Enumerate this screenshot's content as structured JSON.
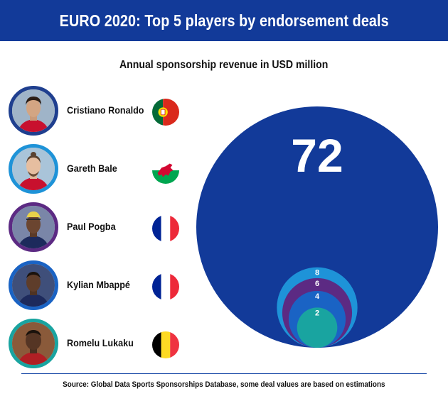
{
  "header": {
    "title": "EURO 2020: Top 5 players by endorsement deals"
  },
  "chart_data": {
    "type": "bubble",
    "title": "EURO 2020: Top 5 players by endorsement deals",
    "subtitle": "Annual sponsorship revenue in USD million",
    "unit": "USD million",
    "categories": [
      "Cristiano Ronaldo",
      "Gareth Bale",
      "Paul Pogba",
      "Kylian Mbappé",
      "Romelu Lukaku"
    ],
    "values": [
      72,
      8,
      6,
      4,
      2
    ],
    "labels": [
      "72",
      "8",
      "6",
      "4",
      "2"
    ],
    "colors": [
      "#123a99",
      "#1e93d8",
      "#5c2a83",
      "#1a63c4",
      "#19a4a0"
    ]
  },
  "players": [
    {
      "name": "Cristiano Ronaldo",
      "country_icon": "portugal-flag-icon",
      "ring_color": "#1f3f8f"
    },
    {
      "name": "Gareth Bale",
      "country_icon": "wales-flag-icon",
      "ring_color": "#1e93d8"
    },
    {
      "name": "Paul Pogba",
      "country_icon": "france-flag-icon",
      "ring_color": "#5c2a83"
    },
    {
      "name": "Kylian Mbappé",
      "country_icon": "france-flag-icon",
      "ring_color": "#1a63c4"
    },
    {
      "name": "Romelu Lukaku",
      "country_icon": "belgium-flag-icon",
      "ring_color": "#19a4a0"
    }
  ],
  "footer": {
    "source": "Source: Global Data Sports Sponsorships Database, some deal values are based on estimations"
  }
}
